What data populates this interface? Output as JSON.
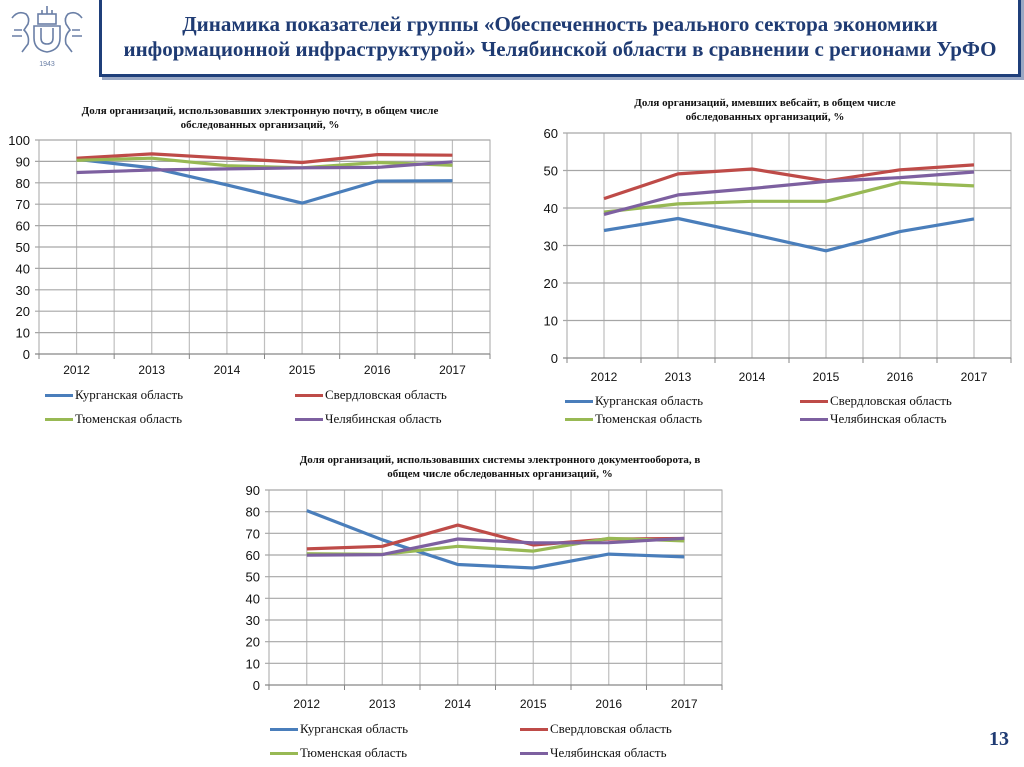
{
  "header": {
    "title": "Динамика показателей группы «Обеспеченность реального сектора экономики информационной инфраструктурой» Челябинской области в сравнении с регионами УрФО",
    "logo_icon": "university-crest-icon",
    "logo_year": "1943"
  },
  "page_number": "13",
  "colors": {
    "Курганская область": "#4a7ebb",
    "Свердловская область": "#be4b48",
    "Тюменская область": "#98b954",
    "Челябинская область": "#7d60a0"
  },
  "chart_data": [
    {
      "type": "line",
      "title": "Доля организаций, использовавших электронную почту, в общем числе обследованных организаций, %",
      "categories": [
        "2012",
        "2013",
        "2014",
        "2015",
        "2016",
        "2017"
      ],
      "ylim": [
        0,
        100
      ],
      "yticks": [
        0,
        10,
        20,
        30,
        40,
        50,
        60,
        70,
        80,
        90,
        100
      ],
      "grid": true,
      "legend_position": "bottom",
      "series": [
        {
          "name": "Курганская область",
          "values": [
            91,
            87,
            79,
            70.5,
            80.8,
            81
          ]
        },
        {
          "name": "Свердловская область",
          "values": [
            91.5,
            93.5,
            91.5,
            89.5,
            93.2,
            92.9
          ]
        },
        {
          "name": "Тюменская область",
          "values": [
            90.5,
            91.5,
            88,
            87,
            89.5,
            88.2
          ]
        },
        {
          "name": "Челябинская область",
          "values": [
            84.8,
            86,
            86.5,
            87,
            87.2,
            89.8
          ]
        }
      ]
    },
    {
      "type": "line",
      "title": "Доля организаций, имевших вебсайт, в общем числе обследованных организаций, %",
      "categories": [
        "2012",
        "2013",
        "2014",
        "2015",
        "2016",
        "2017"
      ],
      "ylim": [
        0,
        60
      ],
      "yticks": [
        0,
        10,
        20,
        30,
        40,
        50,
        60
      ],
      "grid": true,
      "legend_position": "bottom",
      "series": [
        {
          "name": "Курганская область",
          "values": [
            34,
            37.2,
            33,
            28.6,
            33.7,
            37.1
          ]
        },
        {
          "name": "Свердловская область",
          "values": [
            42.5,
            49.1,
            50.4,
            47.2,
            50.2,
            51.5
          ]
        },
        {
          "name": "Тюменская область",
          "values": [
            38.9,
            41.1,
            41.8,
            41.8,
            46.8,
            45.9
          ]
        },
        {
          "name": "Челябинская область",
          "values": [
            38.3,
            43.5,
            45.2,
            47.1,
            48.1,
            49.6
          ]
        }
      ]
    },
    {
      "type": "line",
      "title": "Доля организаций, использовавших системы электронного документооборота, в общем числе обследованных организаций, %",
      "categories": [
        "2012",
        "2013",
        "2014",
        "2015",
        "2016",
        "2017"
      ],
      "ylim": [
        0,
        90
      ],
      "yticks": [
        0,
        10,
        20,
        30,
        40,
        50,
        60,
        70,
        80,
        90
      ],
      "grid": true,
      "legend_position": "bottom",
      "series": [
        {
          "name": "Курганская область",
          "values": [
            80.5,
            67,
            55.6,
            54,
            60.4,
            59.1
          ]
        },
        {
          "name": "Свердловская область",
          "values": [
            62.8,
            64,
            73.8,
            64.6,
            67.4,
            67.6
          ]
        },
        {
          "name": "Тюменская область",
          "values": [
            60.6,
            60.3,
            64,
            61.8,
            67.7,
            66.5
          ]
        },
        {
          "name": "Челябинская область",
          "values": [
            59.9,
            60.2,
            67.4,
            65.6,
            65.7,
            67.7
          ]
        }
      ]
    }
  ]
}
